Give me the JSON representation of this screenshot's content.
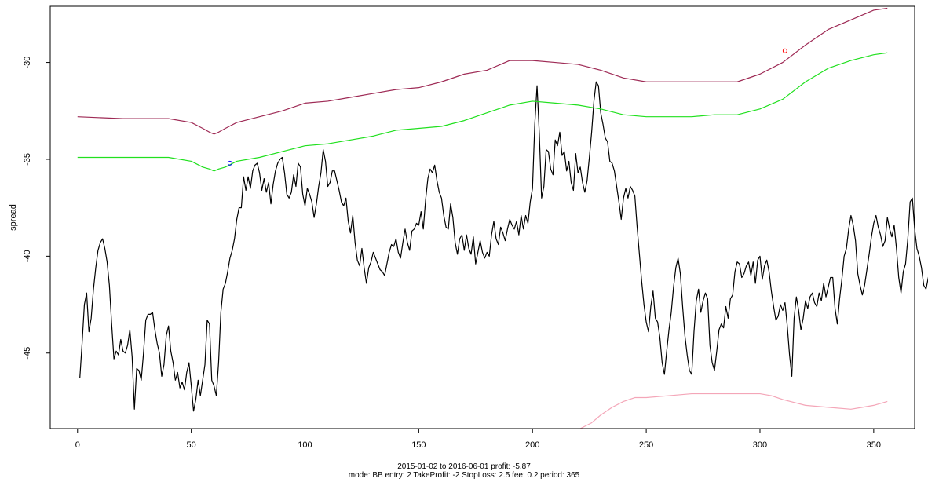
{
  "chart_data": {
    "type": "line",
    "xlabel": "",
    "ylabel": "spread",
    "xlim": [
      -12,
      368
    ],
    "ylim": [
      -48.9,
      -27.1
    ],
    "x_ticks": [
      0,
      50,
      100,
      150,
      200,
      250,
      300,
      350
    ],
    "y_ticks": [
      -45,
      -40,
      -35,
      -30
    ],
    "caption_line1": "2015-01-02 to 2016-06-01 profit: -5.87",
    "caption_line2": "mode: BB entry: 2 TakeProfit: -2 StopLoss: 2.5 fee: 0.2 period: 365",
    "series": [
      {
        "color": "#000000",
        "x_start": 1,
        "values": [
          -46.3,
          -44.5,
          -42.5,
          -41.9,
          -43.9,
          -43.2,
          -41.7,
          -40.6,
          -39.7,
          -39.3,
          -39.1,
          -39.6,
          -40.3,
          -41.5,
          -43.5,
          -45.3,
          -44.9,
          -45.1,
          -44.3,
          -44.9,
          -45.0,
          -44.6,
          -43.8,
          -45.2,
          -47.9,
          -45.8,
          -45.9,
          -46.4,
          -45.0,
          -43.3,
          -43.0,
          -43.0,
          -42.9,
          -43.8,
          -44.5,
          -45.0,
          -46.2,
          -45.6,
          -44.1,
          -43.6,
          -44.9,
          -45.5,
          -46.4,
          -46.0,
          -46.8,
          -46.5,
          -46.9,
          -46.0,
          -45.5,
          -46.7,
          -48.0,
          -47.4,
          -46.4,
          -47.2,
          -46.4,
          -45.6,
          -43.3,
          -43.5,
          -46.4,
          -46.7,
          -47.2,
          -45.5,
          -42.9,
          -41.7,
          -41.4,
          -40.8,
          -40.1,
          -39.7,
          -39.1,
          -38.1,
          -37.5,
          -37.5,
          -35.9,
          -36.6,
          -35.9,
          -36.5,
          -35.6,
          -35.3,
          -35.2,
          -35.7,
          -36.6,
          -36.0,
          -36.7,
          -36.2,
          -37.3,
          -36.3,
          -35.6,
          -35.2,
          -35.0,
          -34.9,
          -35.7,
          -36.8,
          -37.0,
          -36.7,
          -35.8,
          -36.4,
          -35.2,
          -35.4,
          -36.8,
          -37.4,
          -36.5,
          -36.8,
          -37.2,
          -38.0,
          -37.3,
          -36.4,
          -35.7,
          -34.5,
          -35.1,
          -36.4,
          -36.2,
          -35.6,
          -35.6,
          -36.1,
          -36.6,
          -37.2,
          -37.4,
          -37.0,
          -38.2,
          -38.8,
          -37.9,
          -39.3,
          -40.2,
          -40.5,
          -39.6,
          -40.6,
          -41.4,
          -40.6,
          -40.3,
          -39.8,
          -40.1,
          -40.4,
          -40.7,
          -40.8,
          -41.0,
          -40.4,
          -39.8,
          -39.4,
          -39.5,
          -39.1,
          -39.8,
          -40.1,
          -39.3,
          -38.6,
          -39.3,
          -39.7,
          -38.7,
          -38.6,
          -38.3,
          -38.4,
          -37.7,
          -38.6,
          -37.1,
          -36.0,
          -35.5,
          -35.7,
          -35.3,
          -36.1,
          -36.7,
          -37.0,
          -37.9,
          -38.5,
          -38.6,
          -37.3,
          -38.0,
          -39.3,
          -39.9,
          -39.1,
          -38.9,
          -39.7,
          -38.9,
          -39.6,
          -39.9,
          -39.0,
          -40.4,
          -39.8,
          -39.2,
          -39.8,
          -40.1,
          -39.8,
          -40.0,
          -38.9,
          -38.2,
          -39.1,
          -39.4,
          -38.5,
          -38.8,
          -39.2,
          -38.6,
          -38.1,
          -38.4,
          -38.6,
          -38.2,
          -38.9,
          -37.9,
          -38.6,
          -37.9,
          -38.3,
          -37.2,
          -36.5,
          -33.2,
          -31.2,
          -33.7,
          -37.0,
          -36.4,
          -34.5,
          -34.6,
          -35.5,
          -35.8,
          -34.0,
          -34.3,
          -33.6,
          -34.8,
          -34.6,
          -35.6,
          -35.1,
          -36.2,
          -36.6,
          -34.7,
          -35.7,
          -35.4,
          -36.2,
          -36.7,
          -36.1,
          -34.9,
          -33.6,
          -32.0,
          -31.0,
          -31.2,
          -32.6,
          -33.2,
          -33.9,
          -34.1,
          -35.1,
          -35.2,
          -35.6,
          -36.4,
          -37.2,
          -38.1,
          -37.0,
          -36.5,
          -37.0,
          -36.4,
          -36.6,
          -36.9,
          -38.5,
          -39.9,
          -41.3,
          -42.5,
          -43.4,
          -43.9,
          -42.6,
          -41.8,
          -43.2,
          -43.4,
          -44.2,
          -45.5,
          -46.1,
          -44.9,
          -43.8,
          -42.9,
          -41.6,
          -40.6,
          -40.1,
          -40.9,
          -42.6,
          -44.1,
          -45.1,
          -45.9,
          -46.1,
          -43.9,
          -42.3,
          -41.7,
          -42.9,
          -42.3,
          -41.9,
          -42.2,
          -44.6,
          -45.5,
          -45.9,
          -44.9,
          -43.8,
          -43.5,
          -43.7,
          -42.6,
          -43.2,
          -42.2,
          -42.0,
          -40.8,
          -40.3,
          -40.4,
          -41.1,
          -40.9,
          -40.5,
          -40.3,
          -41.0,
          -40.3,
          -41.4,
          -40.2,
          -40.0,
          -41.2,
          -40.5,
          -40.2,
          -40.8,
          -41.8,
          -42.6,
          -43.3,
          -43.1,
          -42.5,
          -42.8,
          -42.4,
          -43.6,
          -45.1,
          -46.2,
          -43.2,
          -42.1,
          -42.8,
          -43.8,
          -43.2,
          -42.3,
          -42.7,
          -42.1,
          -41.9,
          -42.4,
          -42.6,
          -41.9,
          -42.3,
          -41.4,
          -42.1,
          -41.6,
          -41.1,
          -41.1,
          -42.7,
          -43.5,
          -42.2,
          -41.2,
          -40.0,
          -39.6,
          -38.6,
          -37.9,
          -38.4,
          -39.2,
          -40.9,
          -41.5,
          -42.0,
          -41.5,
          -40.7,
          -39.9,
          -39.0,
          -38.3,
          -37.9,
          -38.5,
          -38.9,
          -39.5,
          -39.2,
          -38.0,
          -38.6,
          -39.0,
          -38.4,
          -39.6,
          -41.1,
          -41.9,
          -40.8,
          -40.4,
          -39.1,
          -37.2,
          -37.0,
          -38.6,
          -39.6,
          -40.0,
          -40.6,
          -41.5,
          -41.7,
          -41.1,
          -40.6,
          -40.4,
          -40.0,
          -40.6,
          -41.3,
          -41.7,
          -40.6,
          -39.6,
          -38.6,
          -38.3,
          -38.9,
          -39.4,
          -39.8,
          -40.3,
          -39.0,
          -38.6,
          -38.9,
          -39.5,
          -39.5,
          -38.9,
          -38.3,
          -38.9,
          -39.2,
          -38.3,
          -37.9,
          -37.5,
          -36.8,
          -35.7,
          -34.8,
          -35.2,
          -36.2,
          -35.7,
          -35.1,
          -34.1,
          -33.3,
          -34.7,
          -35.7,
          -35.2,
          -35.8,
          -36.2,
          -35.6,
          -34.9,
          -33.6,
          -34.4,
          -35.9,
          -36.3,
          -35.5,
          -34.4,
          -35.5,
          -35.2,
          -34.9,
          -34.5,
          -35.0,
          -35.9,
          -36.1,
          -35.8,
          -35.5,
          -34.7,
          -34.4,
          -34.1,
          -35.7,
          -35.9,
          -36.1,
          -36.3,
          -35.4,
          -34.1,
          -33.2,
          -34.9,
          -36.2,
          -35.4,
          -34.2,
          -33.1,
          -32.1,
          -33.8,
          -34.9,
          -34.6,
          -33.8,
          -34.2,
          -35.1,
          -35.9,
          -35.2,
          -34.8,
          -34.7,
          -35.0,
          -34.0,
          -32.6,
          -31.0,
          -29.4,
          -30.8,
          -30.2,
          -29.8,
          -29.4,
          -29.0,
          -28.9,
          -28.5,
          -28.2,
          -29.4,
          -30.0,
          -29.1,
          -28.6,
          -28.2,
          -28.8,
          -29.9,
          -30.4,
          -29.5,
          -29.3,
          -29.8,
          -29.0,
          -28.5,
          -28.1,
          -27.8,
          -27.6,
          -28.1,
          -28.4,
          -29.0,
          -30.5,
          -31.6,
          -32.2,
          -32.7,
          -32.4,
          -32.9,
          -33.5,
          -32.9,
          -32.2,
          -32.8,
          -33.6,
          -34.7,
          -35.5,
          -35.1,
          -35.2,
          -34.8,
          -33.7,
          -34.2,
          -33.7,
          -33.3,
          -32.8,
          -32.6,
          -33.2,
          -33.8,
          -32.3,
          -31.7,
          -30.9,
          -30.3,
          -30.1,
          -31.1,
          -32.2,
          -32.6,
          -32.9,
          -33.1,
          -32.7,
          -30.2,
          -31.6,
          -32.5,
          -33.6,
          -34.0,
          -33.6,
          -33.2,
          -33.3,
          -33.7
        ]
      },
      {
        "color": "#9e2a55",
        "x": [
          0,
          20,
          40,
          50,
          55,
          58,
          60,
          62,
          65,
          70,
          80,
          90,
          100,
          110,
          120,
          130,
          140,
          150,
          160,
          170,
          180,
          190,
          200,
          210,
          220,
          230,
          240,
          250,
          260,
          270,
          280,
          290,
          300,
          310,
          320,
          330,
          340,
          350,
          356
        ],
        "values": [
          -32.8,
          -32.9,
          -32.9,
          -33.1,
          -33.4,
          -33.6,
          -33.7,
          -33.6,
          -33.4,
          -33.1,
          -32.8,
          -32.5,
          -32.1,
          -32.0,
          -31.8,
          -31.6,
          -31.4,
          -31.3,
          -31.0,
          -30.6,
          -30.4,
          -29.9,
          -29.9,
          -30.0,
          -30.1,
          -30.4,
          -30.8,
          -31.0,
          -31.0,
          -31.0,
          -31.0,
          -31.0,
          -30.6,
          -30.0,
          -29.1,
          -28.3,
          -27.8,
          -27.3,
          -27.2
        ]
      },
      {
        "color": "#21e01f",
        "x": [
          0,
          20,
          40,
          50,
          55,
          58,
          60,
          62,
          65,
          70,
          80,
          90,
          100,
          110,
          120,
          130,
          140,
          150,
          160,
          170,
          180,
          190,
          200,
          210,
          220,
          230,
          240,
          250,
          260,
          270,
          280,
          290,
          300,
          310,
          320,
          330,
          340,
          350,
          356
        ],
        "values": [
          -34.9,
          -34.9,
          -34.9,
          -35.1,
          -35.4,
          -35.5,
          -35.6,
          -35.5,
          -35.4,
          -35.1,
          -34.9,
          -34.6,
          -34.3,
          -34.2,
          -34.0,
          -33.8,
          -33.5,
          -33.4,
          -33.3,
          -33.0,
          -32.6,
          -32.2,
          -32.0,
          -32.1,
          -32.2,
          -32.4,
          -32.7,
          -32.8,
          -32.8,
          -32.8,
          -32.7,
          -32.7,
          -32.4,
          -31.9,
          -31.0,
          -30.3,
          -29.9,
          -29.6,
          -29.5
        ]
      },
      {
        "color": "#f4a6b8",
        "x": [
          221,
          226,
          230,
          235,
          240,
          245,
          250,
          260,
          270,
          280,
          290,
          300,
          305,
          310,
          320,
          330,
          340,
          345,
          350,
          356
        ],
        "values": [
          -48.9,
          -48.6,
          -48.2,
          -47.8,
          -47.5,
          -47.3,
          -47.3,
          -47.2,
          -47.1,
          -47.1,
          -47.1,
          -47.1,
          -47.2,
          -47.4,
          -47.7,
          -47.8,
          -47.9,
          -47.8,
          -47.7,
          -47.5
        ]
      }
    ],
    "markers": [
      {
        "x": 67,
        "y": -35.2,
        "color": "#0000ff"
      },
      {
        "x": 311,
        "y": -29.4,
        "color": "#ff0000"
      }
    ]
  }
}
